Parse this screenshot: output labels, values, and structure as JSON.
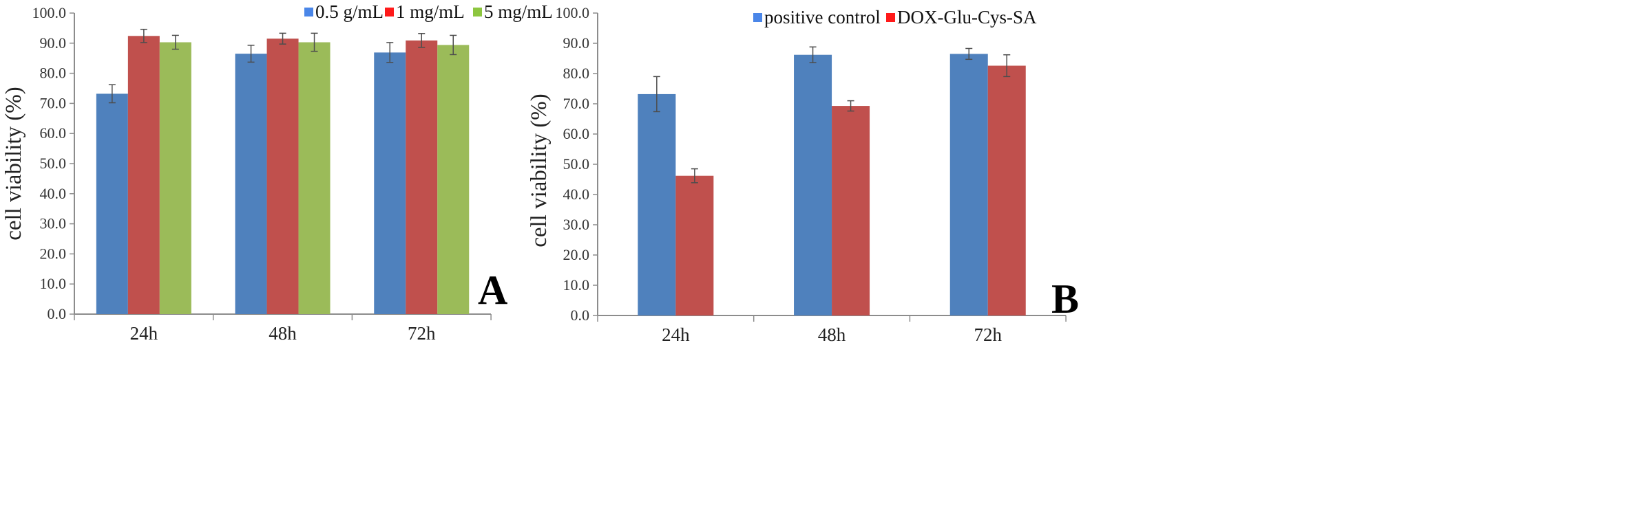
{
  "chart_data": [
    {
      "type": "bar",
      "panel_label": "A",
      "categories": [
        "24h",
        "48h",
        "72h"
      ],
      "series": [
        {
          "name": "0.5 g/mL",
          "values": [
            73.2,
            86.5,
            86.9
          ],
          "errors": [
            3.0,
            2.8,
            3.3
          ],
          "color": "#4F81BD",
          "legend_color": "#4A86E8"
        },
        {
          "name": "1 mg/mL",
          "values": [
            92.4,
            91.5,
            90.9
          ],
          "errors": [
            2.2,
            1.8,
            2.3
          ],
          "color": "#C0504D",
          "legend_color": "#FF1A1A"
        },
        {
          "name": "5 mg/mL",
          "values": [
            90.3,
            90.3,
            89.4
          ],
          "errors": [
            2.3,
            3.0,
            3.2
          ],
          "color": "#9BBB59",
          "legend_color": "#8DC63F"
        }
      ],
      "ylabel": "cell viability (%)",
      "xlabel": "",
      "ylim": [
        0,
        100
      ],
      "yticks": [
        "0.0",
        "10.0",
        "20.0",
        "30.0",
        "40.0",
        "50.0",
        "60.0",
        "70.0",
        "80.0",
        "90.0",
        "100.0"
      ],
      "grid": false,
      "legend_position": "top-right"
    },
    {
      "type": "bar",
      "panel_label": "B",
      "categories": [
        "24h",
        "48h",
        "72h"
      ],
      "series": [
        {
          "name": "positive control",
          "values": [
            73.2,
            86.2,
            86.5
          ],
          "errors": [
            5.8,
            2.6,
            1.8
          ],
          "color": "#4F81BD",
          "legend_color": "#4A86E8"
        },
        {
          "name": "DOX-Glu-Cys-SA",
          "values": [
            46.2,
            69.3,
            82.6
          ],
          "errors": [
            2.3,
            1.7,
            3.6
          ],
          "color": "#C0504D",
          "legend_color": "#FF1A1A"
        }
      ],
      "ylabel": "cell viability (%)",
      "xlabel": "",
      "ylim": [
        0,
        100
      ],
      "yticks": [
        "0.0",
        "10.0",
        "20.0",
        "30.0",
        "40.0",
        "50.0",
        "60.0",
        "70.0",
        "80.0",
        "90.0",
        "100.0"
      ],
      "grid": false,
      "legend_position": "top-right"
    }
  ]
}
